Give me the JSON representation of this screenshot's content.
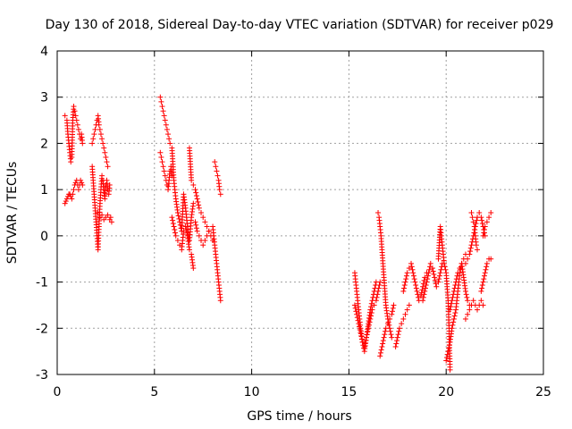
{
  "chart_data": {
    "type": "scatter",
    "title": "Day 130 of 2018, Sidereal Day-to-day VTEC variation (SDTVAR) for receiver p029",
    "xlabel": "GPS time / hours",
    "ylabel": "SDTVAR / TECUs",
    "xlim": [
      0,
      25
    ],
    "ylim": [
      -3,
      4
    ],
    "x_ticks": [
      0,
      5,
      10,
      15,
      20,
      25
    ],
    "y_ticks": [
      -3,
      -2,
      -1,
      0,
      1,
      2,
      3,
      4
    ],
    "grid": true,
    "marker": "+",
    "colors": {
      "points": "#ff0000",
      "axes": "#000000",
      "grid": "#a0a0a0"
    },
    "segments": [
      {
        "x": [
          0.4,
          0.5,
          0.55,
          0.6,
          0.65,
          0.7,
          0.75,
          0.8,
          0.85,
          0.9,
          0.95,
          1.0,
          1.05,
          1.1,
          1.15,
          1.2,
          1.25,
          1.3
        ],
        "y": [
          2.6,
          2.5,
          2.2,
          2.0,
          1.8,
          1.6,
          1.7,
          2.5,
          2.8,
          2.7,
          2.6,
          2.5,
          2.4,
          2.3,
          2.2,
          2.1,
          2.2,
          2.0
        ]
      },
      {
        "x": [
          0.4,
          0.45,
          0.5,
          0.55,
          0.6,
          0.65,
          0.7,
          0.75,
          0.8,
          0.85,
          0.9,
          0.95,
          1.0,
          1.05,
          1.1,
          1.15,
          1.2,
          1.25,
          1.3
        ],
        "y": [
          0.7,
          0.75,
          0.8,
          0.85,
          0.9,
          0.9,
          0.85,
          0.8,
          0.9,
          1.0,
          1.1,
          1.15,
          1.2,
          1.1,
          1.0,
          1.1,
          1.2,
          1.15,
          1.1
        ]
      },
      {
        "x": [
          1.8,
          1.85,
          1.9,
          1.95,
          2.0,
          2.05,
          2.1,
          2.15,
          2.2,
          2.25,
          2.3,
          2.35,
          2.4,
          2.45,
          2.5,
          2.55,
          2.6
        ],
        "y": [
          2.0,
          2.1,
          2.2,
          2.3,
          2.4,
          2.5,
          2.6,
          2.4,
          2.3,
          2.2,
          2.1,
          2.0,
          1.9,
          1.8,
          1.7,
          1.6,
          1.5
        ]
      },
      {
        "x": [
          1.8,
          1.85,
          1.9,
          1.95,
          2.0,
          2.05,
          2.1,
          2.15,
          2.2,
          2.25,
          2.3,
          2.35,
          2.4,
          2.45,
          2.5,
          2.55,
          2.6,
          2.65,
          2.7
        ],
        "y": [
          1.5,
          1.2,
          0.9,
          0.6,
          0.3,
          0.0,
          -0.3,
          0.2,
          0.7,
          1.0,
          1.3,
          1.2,
          1.0,
          0.8,
          1.1,
          1.2,
          1.0,
          0.9,
          1.1
        ]
      },
      {
        "x": [
          2.1,
          2.2,
          2.3,
          2.4,
          2.5,
          2.6,
          2.7,
          2.75,
          2.8
        ],
        "y": [
          0.5,
          0.4,
          0.45,
          0.35,
          0.4,
          0.45,
          0.35,
          0.4,
          0.3
        ]
      },
      {
        "x": [
          5.3,
          5.35,
          5.4,
          5.45,
          5.5,
          5.55,
          5.6,
          5.65,
          5.7,
          5.75,
          5.8
        ],
        "y": [
          3.0,
          2.9,
          2.8,
          2.7,
          2.6,
          2.5,
          2.4,
          2.3,
          2.2,
          2.1,
          2.0
        ]
      },
      {
        "x": [
          5.3,
          5.35,
          5.4,
          5.45,
          5.5,
          5.55,
          5.6,
          5.65,
          5.7,
          5.75,
          5.8,
          5.85,
          5.9
        ],
        "y": [
          1.8,
          1.7,
          1.6,
          1.5,
          1.4,
          1.3,
          1.2,
          1.1,
          1.0,
          1.2,
          1.4,
          1.5,
          1.3
        ]
      },
      {
        "x": [
          5.9,
          6.0,
          6.1,
          6.2,
          6.3,
          6.4,
          6.5,
          6.6,
          6.7,
          6.8,
          6.9,
          7.0
        ],
        "y": [
          1.9,
          1.2,
          0.8,
          0.5,
          0.3,
          0.1,
          0.9,
          0.6,
          0.2,
          -0.1,
          0.4,
          0.7
        ]
      },
      {
        "x": [
          5.9,
          6.0,
          6.1,
          6.2,
          6.3,
          6.4,
          6.5,
          6.6,
          6.7,
          6.8,
          6.9,
          7.0
        ],
        "y": [
          0.4,
          0.2,
          0.0,
          -0.1,
          -0.2,
          -0.3,
          0.1,
          0.2,
          0.0,
          -0.3,
          -0.4,
          -0.7
        ]
      },
      {
        "x": [
          6.8,
          6.9,
          7.0,
          7.1,
          7.2,
          7.3,
          7.4,
          7.5,
          7.6,
          7.7,
          7.8,
          7.9,
          8.0
        ],
        "y": [
          1.9,
          1.2,
          1.1,
          1.0,
          0.8,
          0.6,
          0.5,
          0.4,
          0.3,
          0.2,
          0.1,
          0.0,
          -0.1
        ]
      },
      {
        "x": [
          7.1,
          7.2,
          7.3,
          7.4,
          7.5,
          7.6,
          7.7,
          7.8
        ],
        "y": [
          0.3,
          0.1,
          0.0,
          -0.1,
          -0.2,
          -0.1,
          0.0,
          0.1
        ]
      },
      {
        "x": [
          8.1,
          8.15,
          8.2,
          8.25,
          8.3,
          8.35,
          8.4
        ],
        "y": [
          1.6,
          1.5,
          1.4,
          1.3,
          1.2,
          1.0,
          0.9
        ]
      },
      {
        "x": [
          8.0,
          8.05,
          8.1,
          8.15,
          8.2,
          8.25,
          8.3,
          8.35,
          8.4
        ],
        "y": [
          0.2,
          0.0,
          -0.2,
          -0.4,
          -0.6,
          -0.8,
          -1.0,
          -1.2,
          -1.4
        ]
      },
      {
        "x": [
          15.3,
          15.4,
          15.5,
          15.6,
          15.7,
          15.8,
          15.9,
          16.0,
          16.1,
          16.2,
          16.3,
          16.4
        ],
        "y": [
          -0.8,
          -1.2,
          -1.6,
          -2.0,
          -2.3,
          -2.5,
          -2.2,
          -1.9,
          -1.6,
          -1.4,
          -1.2,
          -1.0
        ]
      },
      {
        "x": [
          15.3,
          15.4,
          15.5,
          15.6,
          15.7,
          15.8,
          15.9,
          16.0,
          16.1,
          16.2,
          16.3,
          16.4,
          16.5,
          16.6
        ],
        "y": [
          -1.5,
          -1.7,
          -1.9,
          -2.1,
          -2.3,
          -2.4,
          -2.2,
          -2.0,
          -1.8,
          -1.6,
          -1.5,
          -1.4,
          -1.2,
          -1.0
        ]
      },
      {
        "x": [
          16.5,
          16.55,
          16.6,
          16.65,
          16.7,
          16.75,
          16.8,
          16.85,
          16.9,
          17.0,
          17.1,
          17.2
        ],
        "y": [
          0.5,
          0.4,
          0.2,
          0.0,
          -0.3,
          -0.6,
          -0.9,
          -1.2,
          -1.5,
          -1.8,
          -2.0,
          -2.2
        ]
      },
      {
        "x": [
          16.6,
          16.7,
          16.8,
          16.9,
          17.0,
          17.1,
          17.2,
          17.3
        ],
        "y": [
          -2.6,
          -2.4,
          -2.2,
          -2.0,
          -1.9,
          -1.8,
          -1.7,
          -1.5
        ]
      },
      {
        "x": [
          17.4,
          17.5,
          17.6,
          17.7,
          17.8,
          17.9,
          18.0,
          18.1
        ],
        "y": [
          -2.4,
          -2.2,
          -2.0,
          -1.9,
          -1.8,
          -1.7,
          -1.6,
          -1.5
        ]
      },
      {
        "x": [
          17.8,
          17.9,
          18.0,
          18.1,
          18.2,
          18.3,
          18.4,
          18.5,
          18.6,
          18.7,
          18.8,
          18.9,
          19.0
        ],
        "y": [
          -1.2,
          -1.0,
          -0.8,
          -0.7,
          -0.6,
          -0.8,
          -1.0,
          -1.2,
          -1.4,
          -1.3,
          -1.1,
          -0.9,
          -0.8
        ]
      },
      {
        "x": [
          18.8,
          18.9,
          19.0,
          19.1,
          19.2,
          19.3,
          19.4,
          19.5,
          19.6,
          19.7,
          19.8
        ],
        "y": [
          -1.4,
          -1.2,
          -1.0,
          -0.8,
          -0.6,
          -0.7,
          -0.9,
          -1.1,
          -1.0,
          -0.8,
          -0.6
        ]
      },
      {
        "x": [
          19.6,
          19.7,
          19.75,
          19.8,
          19.85,
          19.9,
          20.0,
          20.1,
          20.15,
          20.2
        ],
        "y": [
          -0.5,
          0.2,
          0.0,
          -0.2,
          -0.4,
          -0.6,
          -0.8,
          -1.4,
          -2.0,
          -2.9
        ]
      },
      {
        "x": [
          20.0,
          20.1,
          20.2,
          20.3,
          20.4,
          20.5,
          20.6,
          20.7,
          20.8,
          20.9,
          21.0
        ],
        "y": [
          -2.7,
          -2.5,
          -2.3,
          -2.0,
          -1.8,
          -1.6,
          -1.2,
          -0.8,
          -0.6,
          -0.5,
          -0.4
        ]
      },
      {
        "x": [
          20.2,
          20.3,
          20.4,
          20.5,
          20.6,
          20.7,
          20.8,
          20.9,
          21.0,
          21.1,
          21.2
        ],
        "y": [
          -1.6,
          -1.4,
          -1.2,
          -1.0,
          -0.8,
          -0.7,
          -0.6,
          -0.9,
          -1.2,
          -1.4,
          -1.5
        ]
      },
      {
        "x": [
          21.0,
          21.1,
          21.2,
          21.3,
          21.4,
          21.5,
          21.6,
          21.7,
          21.8,
          21.9,
          22.0
        ],
        "y": [
          -0.6,
          -0.5,
          -0.4,
          -0.2,
          0.0,
          0.2,
          0.4,
          0.5,
          0.4,
          0.2,
          0.0
        ]
      },
      {
        "x": [
          21.0,
          21.1,
          21.2,
          21.3,
          21.4,
          21.5,
          21.6,
          21.7,
          21.8,
          21.9
        ],
        "y": [
          -1.8,
          -1.7,
          -1.6,
          -1.5,
          -1.4,
          -1.5,
          -1.6,
          -1.5,
          -1.4,
          -1.5
        ]
      },
      {
        "x": [
          21.3,
          21.35,
          21.4,
          21.45,
          21.5,
          21.55,
          21.6
        ],
        "y": [
          0.5,
          0.4,
          0.3,
          0.2,
          0.0,
          -0.2,
          -0.3
        ]
      },
      {
        "x": [
          21.8,
          21.9,
          22.0,
          22.1,
          22.2,
          22.3
        ],
        "y": [
          -1.2,
          -1.0,
          -0.8,
          -0.6,
          -0.5,
          -0.5
        ]
      },
      {
        "x": [
          21.9,
          22.0,
          22.1,
          22.2,
          22.3
        ],
        "y": [
          0.0,
          0.2,
          0.3,
          0.4,
          0.5
        ]
      }
    ]
  }
}
